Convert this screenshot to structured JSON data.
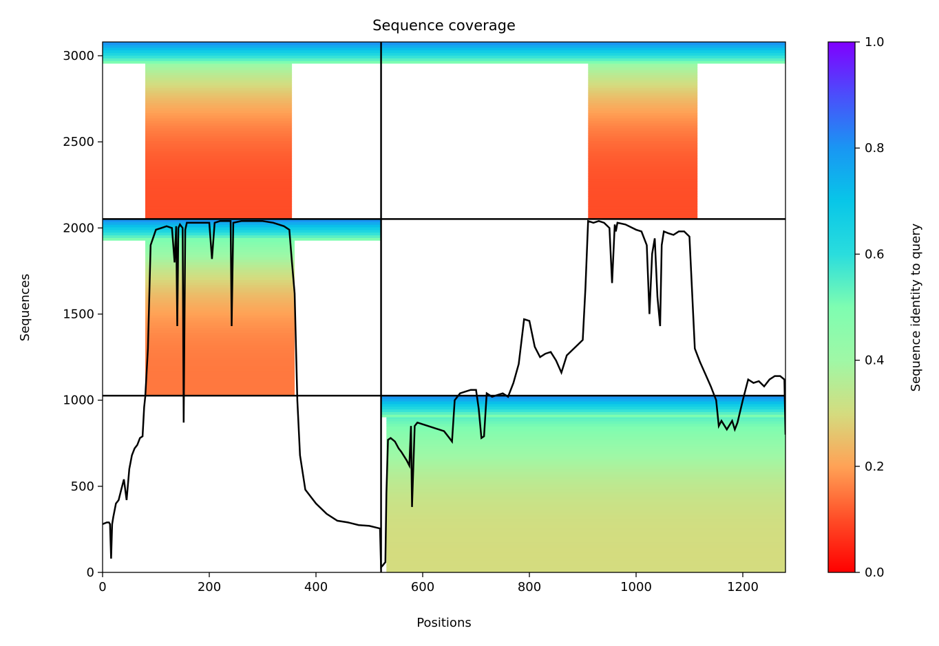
{
  "chart_data": {
    "type": "heatmap",
    "title": "Sequence coverage",
    "xlabel": "Positions",
    "ylabel": "Sequences",
    "xlim": [
      0,
      1280
    ],
    "ylim": [
      0,
      3080
    ],
    "x_ticks": [
      0,
      200,
      400,
      600,
      800,
      1000,
      1200
    ],
    "y_ticks": [
      0,
      500,
      1000,
      1500,
      2000,
      2500,
      3000
    ],
    "grid": false,
    "chain_boundaries_x": [
      522
    ],
    "block_boundaries_y": [
      1026,
      2052
    ],
    "colormap": "rainbow_r",
    "colorbar": {
      "label": "Sequence identity to query",
      "range": [
        0.0,
        1.0
      ],
      "ticks": [
        0.0,
        0.2,
        0.4,
        0.6,
        0.8,
        1.0
      ],
      "tick_labels": [
        "0.0",
        "0.2",
        "0.4",
        "0.6",
        "0.8",
        "1.0"
      ]
    },
    "blocks": [
      {
        "x": [
          0,
          522
        ],
        "y": [
          2052,
          3080
        ],
        "covered_x": [
          80,
          355
        ],
        "identity_low": 0.1,
        "identity_high": 0.55
      },
      {
        "x": [
          522,
          1280
        ],
        "y": [
          2052,
          3080
        ],
        "covered_x": [
          910,
          1115
        ],
        "identity_low": 0.1,
        "identity_high": 0.55
      },
      {
        "x": [
          0,
          522
        ],
        "y": [
          1026,
          2052
        ],
        "covered_x": [
          80,
          360
        ],
        "identity_low": 0.15,
        "identity_high": 0.65
      },
      {
        "x": [
          522,
          1280
        ],
        "y": [
          0,
          1026
        ],
        "covered_x": [
          532,
          1280
        ],
        "identity_low": 0.3,
        "identity_high": 0.65
      }
    ],
    "series": [
      {
        "x": [
          0,
          8,
          12,
          14,
          16,
          18,
          20,
          25,
          30,
          35,
          40,
          45,
          50,
          55,
          60,
          65,
          70,
          75,
          78,
          80,
          85,
          90,
          100,
          110,
          120,
          130,
          135,
          138,
          140,
          142,
          145,
          150,
          152,
          155,
          158,
          160,
          170,
          180,
          200,
          205,
          210,
          220,
          240,
          242,
          245,
          260,
          280,
          300,
          320,
          340,
          350,
          355,
          360,
          365,
          370,
          380,
          400,
          420,
          440,
          460,
          480,
          500,
          520,
          522,
          525,
          530,
          532,
          535,
          540,
          548,
          555,
          560,
          570,
          575,
          578,
          580,
          585,
          590,
          600,
          620,
          640,
          650,
          655,
          660,
          670,
          680,
          690,
          700,
          705,
          710,
          715,
          720,
          730,
          740,
          750,
          760,
          770,
          780,
          790,
          800,
          810,
          820,
          830,
          840,
          850,
          860,
          870,
          880,
          890,
          900,
          905,
          910,
          920,
          930,
          940,
          950,
          955,
          960,
          962,
          965,
          980,
          1000,
          1010,
          1020,
          1025,
          1030,
          1035,
          1040,
          1045,
          1048,
          1052,
          1060,
          1070,
          1080,
          1090,
          1100,
          1110,
          1115,
          1120,
          1130,
          1140,
          1150,
          1155,
          1160,
          1170,
          1180,
          1185,
          1190,
          1200,
          1210,
          1220,
          1230,
          1240,
          1250,
          1260,
          1270,
          1278,
          1280
        ],
        "values": [
          280,
          290,
          290,
          280,
          80,
          280,
          320,
          400,
          420,
          480,
          540,
          420,
          600,
          680,
          720,
          740,
          780,
          790,
          960,
          1020,
          1300,
          1900,
          1990,
          2000,
          2010,
          2000,
          1800,
          2010,
          1430,
          2000,
          2020,
          2000,
          870,
          1990,
          2030,
          2030,
          2030,
          2030,
          2030,
          1820,
          2030,
          2040,
          2040,
          1430,
          2030,
          2040,
          2040,
          2040,
          2030,
          2010,
          1990,
          1800,
          1620,
          1000,
          680,
          480,
          400,
          340,
          300,
          290,
          275,
          270,
          255,
          30,
          40,
          60,
          460,
          770,
          780,
          760,
          720,
          700,
          650,
          620,
          850,
          380,
          850,
          870,
          860,
          840,
          820,
          780,
          760,
          1000,
          1040,
          1050,
          1060,
          1060,
          950,
          780,
          790,
          1040,
          1020,
          1030,
          1040,
          1020,
          1100,
          1210,
          1470,
          1460,
          1310,
          1250,
          1270,
          1280,
          1230,
          1160,
          1260,
          1290,
          1320,
          1350,
          1650,
          2040,
          2030,
          2040,
          2030,
          2000,
          1680,
          2020,
          1980,
          2030,
          2020,
          1990,
          1980,
          1900,
          1500,
          1850,
          1940,
          1600,
          1430,
          1900,
          1980,
          1970,
          1960,
          1980,
          1980,
          1950,
          1300,
          1260,
          1220,
          1150,
          1080,
          1000,
          850,
          880,
          830,
          880,
          830,
          870,
          1000,
          1120,
          1100,
          1110,
          1080,
          1120,
          1140,
          1140,
          1120,
          800
        ]
      }
    ]
  }
}
